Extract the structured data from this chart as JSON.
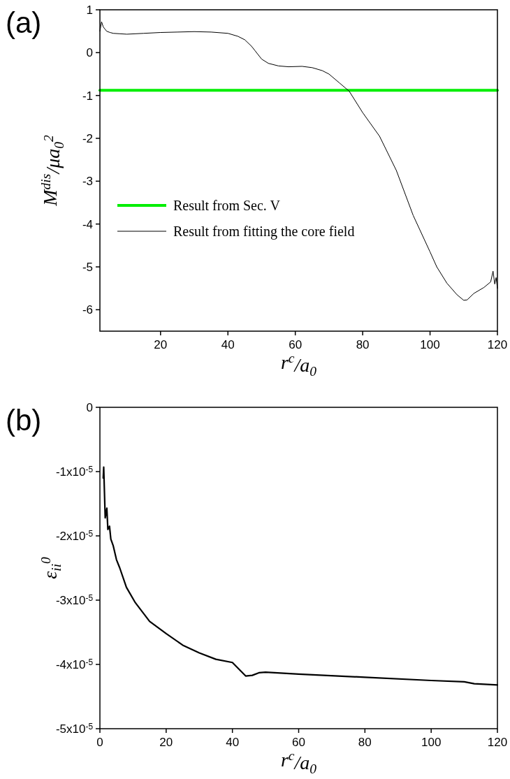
{
  "chart_data": [
    {
      "type": "line",
      "title": "(a)",
      "xlabel": "r$^{c}$/a$_{0}$",
      "ylabel": "M$^{dis}$/μa$_{0}$$^{2}$",
      "xlim": [
        2,
        120
      ],
      "ylim": [
        -6.5,
        1
      ],
      "xticks": [
        20,
        40,
        60,
        80,
        100,
        120
      ],
      "yticks": [
        -6,
        -5,
        -4,
        -3,
        -2,
        -1,
        0,
        1
      ],
      "legend": "left",
      "grid": false,
      "series": [
        {
          "name": "Result from Sec. V",
          "color": "#00ee00",
          "x": [
            2,
            120
          ],
          "values": [
            -0.88,
            -0.88
          ]
        },
        {
          "name": "Result from fitting the core field",
          "color": "#000000",
          "x": [
            2,
            2.5,
            3,
            3.5,
            4,
            5,
            6,
            8,
            10,
            15,
            20,
            25,
            30,
            35,
            40,
            43,
            45,
            47,
            48,
            50,
            52,
            55,
            58,
            62,
            65,
            68,
            70,
            73,
            76,
            80,
            85,
            90,
            95,
            100,
            102,
            105,
            108,
            110,
            111,
            113,
            116,
            118,
            118.7,
            119.2,
            119.6,
            120
          ],
          "values": [
            0.5,
            0.72,
            0.6,
            0.55,
            0.5,
            0.47,
            0.45,
            0.44,
            0.43,
            0.45,
            0.47,
            0.48,
            0.49,
            0.48,
            0.45,
            0.38,
            0.3,
            0.15,
            0.05,
            -0.15,
            -0.25,
            -0.31,
            -0.33,
            -0.32,
            -0.35,
            -0.42,
            -0.5,
            -0.7,
            -0.9,
            -1.4,
            -1.95,
            -2.75,
            -3.8,
            -4.65,
            -5,
            -5.38,
            -5.65,
            -5.78,
            -5.77,
            -5.62,
            -5.48,
            -5.35,
            -5.1,
            -5.4,
            -5.25,
            -5.5
          ]
        }
      ]
    },
    {
      "type": "line",
      "title": "(b)",
      "xlabel": "r$^{c}$/a$_{0}$",
      "ylabel": "ε$_{ii}$$^{0}$",
      "xlim": [
        0,
        120
      ],
      "ylim": [
        -5e-05,
        0
      ],
      "xticks": [
        0,
        20,
        40,
        60,
        80,
        100,
        120
      ],
      "yticks": [
        {
          "value": -5e-05,
          "label": "-5x10$^{-5}$"
        },
        {
          "value": -4e-05,
          "label": "-4x10$^{-5}$"
        },
        {
          "value": -3e-05,
          "label": "-3x10$^{-5}$"
        },
        {
          "value": -2e-05,
          "label": "-2x10$^{-5}$"
        },
        {
          "value": -1e-05,
          "label": "-1x10$^{-5}$"
        },
        0
      ],
      "grid": false,
      "series": [
        {
          "color": "#000000",
          "x": [
            1,
            1.15,
            1.6,
            2.1,
            2.4,
            2.9,
            3.3,
            4,
            5,
            6,
            8,
            10.7,
            15,
            20,
            25,
            30,
            35,
            40,
            44,
            46,
            48,
            50,
            60,
            80,
            100,
            110,
            113,
            120
          ],
          "values": [
            -1.1e-05,
            -9.3e-06,
            -1.72e-05,
            -1.57e-05,
            -1.9e-05,
            -1.85e-05,
            -2.05e-05,
            -2.15e-05,
            -2.37e-05,
            -2.5e-05,
            -2.8e-05,
            -3.04e-05,
            -3.33e-05,
            -3.52e-05,
            -3.7e-05,
            -3.82e-05,
            -3.92e-05,
            -3.97e-05,
            -4.18e-05,
            -4.17e-05,
            -4.13e-05,
            -4.12e-05,
            -4.15e-05,
            -4.2e-05,
            -4.25e-05,
            -4.27e-05,
            -4.3e-05,
            -4.32e-05
          ]
        }
      ]
    }
  ]
}
